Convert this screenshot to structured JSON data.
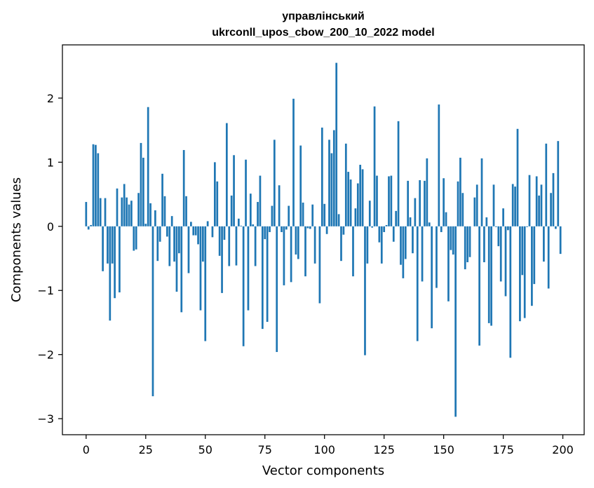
{
  "chart_data": {
    "type": "bar",
    "title_lines": [
      "управлінський",
      "ukrconll_upos_cbow_200_10_2022 model"
    ],
    "xlabel": "Vector components",
    "ylabel": "Components values",
    "xlim": [
      -9.95,
      208.95
    ],
    "ylim": [
      -3.25,
      2.83
    ],
    "x_ticks": [
      0,
      25,
      50,
      75,
      100,
      125,
      150,
      175,
      200
    ],
    "y_ticks": [
      -3,
      -2,
      -1,
      0,
      1,
      2
    ],
    "y_tick_labels": [
      "−3",
      "−2",
      "−1",
      "0",
      "1",
      "2"
    ],
    "bar_color": "#1f77b4",
    "grid": false,
    "legend": "none",
    "x": [
      0,
      1,
      2,
      3,
      4,
      5,
      6,
      7,
      8,
      9,
      10,
      11,
      12,
      13,
      14,
      15,
      16,
      17,
      18,
      19,
      20,
      21,
      22,
      23,
      24,
      25,
      26,
      27,
      28,
      29,
      30,
      31,
      32,
      33,
      34,
      35,
      36,
      37,
      38,
      39,
      40,
      41,
      42,
      43,
      44,
      45,
      46,
      47,
      48,
      49,
      50,
      51,
      52,
      53,
      54,
      55,
      56,
      57,
      58,
      59,
      60,
      61,
      62,
      63,
      64,
      65,
      66,
      67,
      68,
      69,
      70,
      71,
      72,
      73,
      74,
      75,
      76,
      77,
      78,
      79,
      80,
      81,
      82,
      83,
      84,
      85,
      86,
      87,
      88,
      89,
      90,
      91,
      92,
      93,
      94,
      95,
      96,
      97,
      98,
      99,
      100,
      101,
      102,
      103,
      104,
      105,
      106,
      107,
      108,
      109,
      110,
      111,
      112,
      113,
      114,
      115,
      116,
      117,
      118,
      119,
      120,
      121,
      122,
      123,
      124,
      125,
      126,
      127,
      128,
      129,
      130,
      131,
      132,
      133,
      134,
      135,
      136,
      137,
      138,
      139,
      140,
      141,
      142,
      143,
      144,
      145,
      146,
      147,
      148,
      149,
      150,
      151,
      152,
      153,
      154,
      155,
      156,
      157,
      158,
      159,
      160,
      161,
      162,
      163,
      164,
      165,
      166,
      167,
      168,
      169,
      170,
      171,
      172,
      173,
      174,
      175,
      176,
      177,
      178,
      179,
      180,
      181,
      182,
      183,
      184,
      185,
      186,
      187,
      188,
      189,
      190,
      191,
      192,
      193,
      194,
      195,
      196,
      197,
      198,
      199
    ],
    "values": [
      0.38,
      -0.05,
      0.02,
      1.28,
      1.27,
      1.14,
      0.44,
      -0.7,
      0.44,
      -0.58,
      -1.47,
      -0.58,
      -1.12,
      0.59,
      -1.03,
      0.45,
      0.66,
      0.45,
      0.34,
      0.4,
      -0.38,
      -0.36,
      0.52,
      1.3,
      1.07,
      0.04,
      1.86,
      0.36,
      -2.65,
      0.25,
      -0.54,
      -0.24,
      0.82,
      0.47,
      -0.16,
      -0.62,
      0.16,
      -0.55,
      -1.02,
      -0.42,
      -1.34,
      1.19,
      0.47,
      -0.73,
      0.07,
      -0.14,
      -0.14,
      -0.28,
      -1.31,
      -0.55,
      -1.79,
      0.08,
      0.0,
      -0.17,
      1.0,
      0.7,
      -0.46,
      -1.04,
      -0.21,
      1.61,
      -0.62,
      0.48,
      1.11,
      -0.61,
      0.12,
      0.01,
      -1.87,
      1.04,
      -1.31,
      0.51,
      0.03,
      -0.62,
      0.38,
      0.79,
      -1.6,
      -0.2,
      -1.49,
      -0.09,
      0.32,
      1.35,
      -1.96,
      0.64,
      -0.09,
      -0.92,
      -0.05,
      0.32,
      -0.87,
      1.99,
      -0.44,
      -0.51,
      1.26,
      0.37,
      -0.78,
      -0.03,
      -0.04,
      0.34,
      -0.58,
      0.0,
      -1.2,
      1.54,
      0.35,
      -0.12,
      1.35,
      1.14,
      1.5,
      2.55,
      0.19,
      -0.54,
      -0.13,
      1.29,
      0.85,
      0.73,
      -0.78,
      0.28,
      0.67,
      0.96,
      0.89,
      -2.01,
      -0.58,
      0.4,
      -0.02,
      1.87,
      0.79,
      -0.25,
      -0.58,
      -0.09,
      0.02,
      0.78,
      0.79,
      -0.24,
      0.24,
      1.64,
      -0.6,
      -0.81,
      -0.51,
      0.71,
      0.14,
      -0.42,
      0.44,
      -1.79,
      0.72,
      -0.86,
      0.71,
      1.06,
      0.06,
      -1.59,
      0.0,
      -0.96,
      1.9,
      -0.09,
      0.75,
      0.22,
      -1.17,
      -0.37,
      -0.44,
      -2.97,
      0.7,
      1.07,
      0.52,
      -0.67,
      -0.56,
      -0.48,
      0.0,
      0.45,
      0.65,
      -1.86,
      1.06,
      -0.56,
      0.14,
      -1.51,
      -1.55,
      0.65,
      -0.01,
      -0.31,
      -0.86,
      0.28,
      -1.09,
      -0.06,
      -2.05,
      0.66,
      0.62,
      1.52,
      -1.48,
      -0.76,
      -1.43,
      -0.01,
      0.8,
      -1.24,
      -0.9,
      0.78,
      0.48,
      0.65,
      -0.55,
      1.29,
      -0.97,
      0.52,
      0.83,
      -0.04,
      1.33,
      -0.43
    ]
  }
}
